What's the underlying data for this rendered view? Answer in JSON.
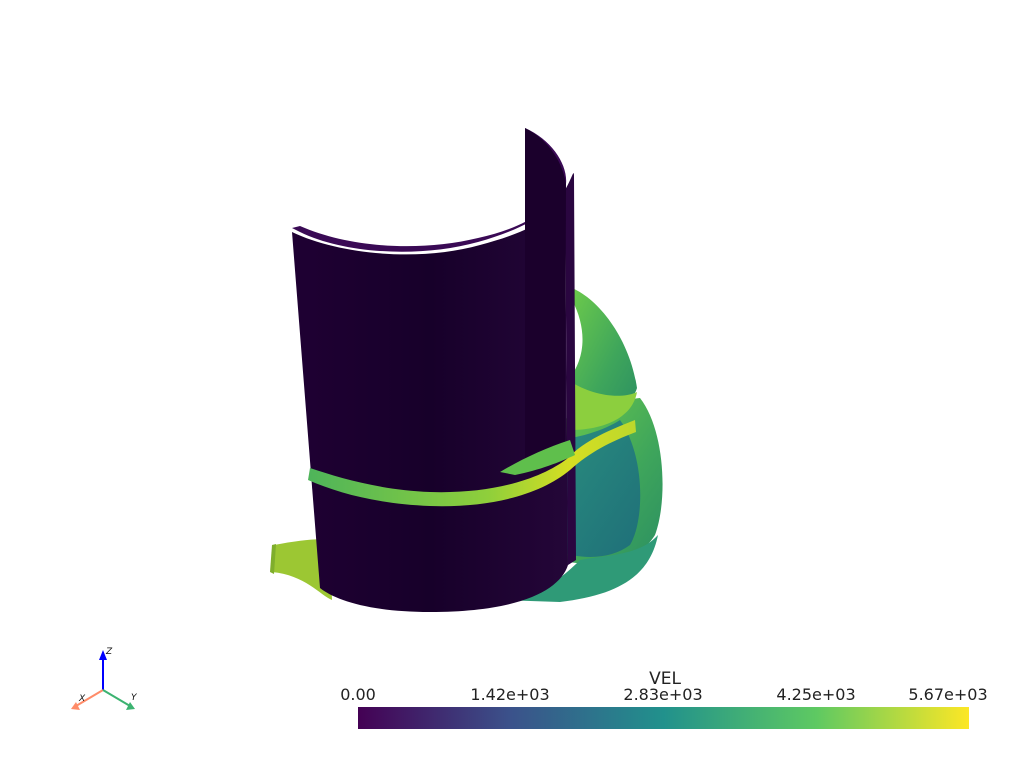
{
  "scalar_bar": {
    "title": "VEL",
    "ticks": [
      "0.00",
      "1.42e+03",
      "2.83e+03",
      "4.25e+03",
      "5.67e+03"
    ],
    "range": [
      0.0,
      5670.0
    ],
    "colormap": "viridis",
    "colors": [
      "#440154",
      "#3b528b",
      "#21918c",
      "#5ec962",
      "#fde725"
    ]
  },
  "axes_widget": {
    "x_label": "X",
    "y_label": "Y",
    "z_label": "Z",
    "x_color": "#ff8c69",
    "y_color": "#3cb371",
    "z_color": "#0000ff"
  },
  "scene": {
    "cylinder_color": "#1c0030",
    "iso_colors": [
      "#3f9f5e",
      "#66c24d",
      "#c9dc2a",
      "#2a9a7d",
      "#3f4f8c"
    ]
  }
}
